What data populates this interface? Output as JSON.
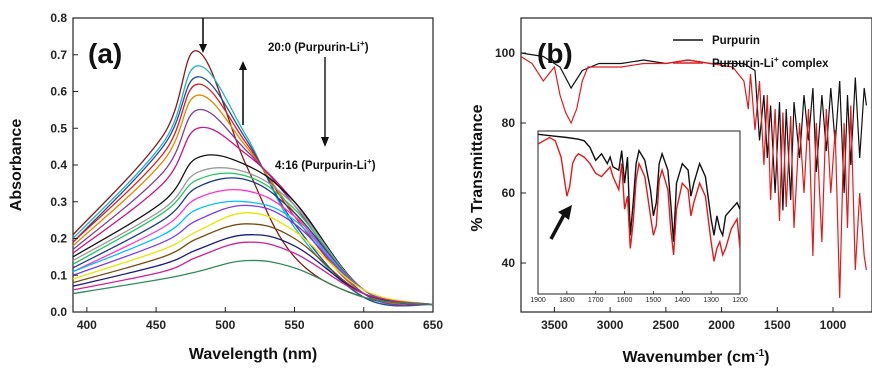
{
  "chart_data": [
    {
      "type": "line",
      "panel_label": "(a)",
      "xlabel": "Wavelength (nm)",
      "ylabel": "Absorbance",
      "xlim": [
        390,
        650
      ],
      "ylim": [
        0.0,
        0.8
      ],
      "xticks": [
        "400",
        "450",
        "500",
        "550",
        "600",
        "650"
      ],
      "yticks": [
        "0.0",
        "0.1",
        "0.2",
        "0.3",
        "0.4",
        "0.5",
        "0.6",
        "0.7",
        "0.8"
      ],
      "annotations": {
        "top": "20:0 (Purpurin-Li",
        "top_sup": "+",
        "top_end": ")",
        "bottom": "4:16 (Purpurin-Li",
        "bottom_sup": "+",
        "bottom_end": ")"
      },
      "grid": false,
      "series": [
        {
          "color": "#8b1a1a",
          "values": [
            0.21,
            0.48,
            0.71,
            0.4,
            0.15,
            0.04,
            0.02
          ]
        },
        {
          "color": "#20b2c8",
          "values": [
            0.2,
            0.46,
            0.67,
            0.48,
            0.23,
            0.04,
            0.02
          ]
        },
        {
          "color": "#1f4e9e",
          "values": [
            0.19,
            0.45,
            0.64,
            0.47,
            0.24,
            0.04,
            0.02
          ]
        },
        {
          "color": "#e31a1c",
          "values": [
            0.19,
            0.43,
            0.62,
            0.46,
            0.26,
            0.05,
            0.02
          ]
        },
        {
          "color": "#e08a00",
          "values": [
            0.18,
            0.41,
            0.59,
            0.45,
            0.27,
            0.05,
            0.02
          ]
        },
        {
          "color": "#7b3fa0",
          "values": [
            0.17,
            0.38,
            0.55,
            0.44,
            0.29,
            0.05,
            0.02
          ]
        },
        {
          "color": "#c71585",
          "values": [
            0.16,
            0.35,
            0.5,
            0.43,
            0.3,
            0.06,
            0.02
          ]
        },
        {
          "color": "#111111",
          "values": [
            0.15,
            0.3,
            0.42,
            0.4,
            0.3,
            0.06,
            0.02
          ]
        },
        {
          "color": "#999999",
          "values": [
            0.14,
            0.28,
            0.38,
            0.38,
            0.29,
            0.06,
            0.02
          ]
        },
        {
          "color": "#22c55e",
          "values": [
            0.13,
            0.27,
            0.36,
            0.37,
            0.28,
            0.06,
            0.02
          ]
        },
        {
          "color": "#1e3a8a",
          "values": [
            0.12,
            0.25,
            0.34,
            0.36,
            0.27,
            0.06,
            0.02
          ]
        },
        {
          "color": "#ff33cc",
          "values": [
            0.11,
            0.23,
            0.31,
            0.33,
            0.26,
            0.06,
            0.02
          ]
        },
        {
          "color": "#00bfff",
          "values": [
            0.11,
            0.21,
            0.28,
            0.3,
            0.25,
            0.06,
            0.02
          ]
        },
        {
          "color": "#7c3aed",
          "values": [
            0.1,
            0.19,
            0.25,
            0.29,
            0.24,
            0.06,
            0.02
          ]
        },
        {
          "color": "#e6e600",
          "values": [
            0.09,
            0.17,
            0.22,
            0.27,
            0.22,
            0.06,
            0.02
          ]
        },
        {
          "color": "#7a4a10",
          "values": [
            0.08,
            0.15,
            0.2,
            0.24,
            0.2,
            0.05,
            0.02
          ]
        },
        {
          "color": "#1a1a80",
          "values": [
            0.07,
            0.13,
            0.17,
            0.21,
            0.18,
            0.05,
            0.02
          ]
        },
        {
          "color": "#d02090",
          "values": [
            0.06,
            0.11,
            0.15,
            0.19,
            0.16,
            0.05,
            0.02
          ]
        },
        {
          "color": "#2e8b57",
          "values": [
            0.05,
            0.09,
            0.11,
            0.14,
            0.12,
            0.04,
            0.02
          ]
        }
      ],
      "x": [
        390,
        455,
        480,
        515,
        550,
        600,
        650
      ]
    },
    {
      "type": "line",
      "panel_label": "(b)",
      "xlabel": "Wavenumber (cm",
      "xlabel_sup": "-1",
      "xlabel_end": ")",
      "ylabel": "% Transmittance",
      "xlim": [
        3800,
        650
      ],
      "ylim": [
        26,
        110
      ],
      "xticks": [
        "3500",
        "3000",
        "2500",
        "2000",
        "1500",
        "1000"
      ],
      "yticks": [
        "40",
        "60",
        "80",
        "100"
      ],
      "grid": false,
      "legend": {
        "position": "top-right",
        "items": [
          {
            "label": "Purpurin",
            "sup": "",
            "label_end": "",
            "color": "#111111"
          },
          {
            "label": "Purpurin-Li",
            "sup": "+",
            "label_end": " complex",
            "color": "#e31a1c"
          }
        ]
      },
      "series": [
        {
          "name": "Purpurin",
          "color": "#111111",
          "x": [
            3800,
            3600,
            3450,
            3350,
            3250,
            3100,
            2900,
            2700,
            2500,
            2300,
            2100,
            1900,
            1800,
            1750,
            1700,
            1660,
            1620,
            1590,
            1560,
            1520,
            1480,
            1450,
            1420,
            1380,
            1350,
            1300,
            1260,
            1220,
            1180,
            1150,
            1100,
            1060,
            1020,
            980,
            940,
            900,
            870,
            840,
            800,
            760,
            720,
            700
          ],
          "y": [
            100,
            99,
            96,
            90,
            95,
            97,
            97,
            98,
            97,
            98,
            97,
            97,
            97,
            96,
            95,
            75,
            88,
            70,
            85,
            60,
            86,
            55,
            84,
            58,
            86,
            70,
            88,
            75,
            90,
            66,
            88,
            72,
            90,
            74,
            92,
            60,
            88,
            68,
            93,
            70,
            90,
            85
          ]
        },
        {
          "name": "Purpurin-Li+ complex",
          "color": "#e31a1c",
          "x": [
            3800,
            3700,
            3600,
            3500,
            3450,
            3400,
            3350,
            3300,
            3250,
            3200,
            3100,
            2900,
            2700,
            2500,
            2300,
            2100,
            1900,
            1800,
            1760,
            1740,
            1700,
            1660,
            1620,
            1590,
            1560,
            1520,
            1480,
            1450,
            1420,
            1380,
            1350,
            1300,
            1260,
            1220,
            1180,
            1150,
            1100,
            1060,
            1020,
            980,
            940,
            900,
            870,
            840,
            800,
            760,
            720,
            700
          ],
          "y": [
            99,
            97,
            92,
            96,
            88,
            83,
            80,
            84,
            92,
            96,
            96,
            96,
            97,
            97,
            98,
            97,
            96,
            92,
            84,
            94,
            78,
            92,
            68,
            88,
            58,
            84,
            52,
            83,
            56,
            82,
            50,
            80,
            60,
            84,
            42,
            80,
            46,
            84,
            60,
            78,
            30,
            80,
            50,
            85,
            38,
            60,
            42,
            38
          ]
        }
      ],
      "inset": {
        "xlim": [
          1900,
          1200
        ],
        "ylim": [
          32,
          82
        ],
        "xticks": [
          "1900",
          "1800",
          "1700",
          "1600",
          "1500",
          "1400",
          "1300",
          "1200"
        ],
        "series": [
          {
            "name": "Purpurin",
            "color": "#111111",
            "x": [
              1900,
              1850,
              1800,
              1760,
              1740,
              1720,
              1700,
              1680,
              1660,
              1650,
              1640,
              1620,
              1610,
              1600,
              1590,
              1580,
              1570,
              1560,
              1550,
              1530,
              1510,
              1500,
              1490,
              1480,
              1470,
              1450,
              1440,
              1430,
              1420,
              1400,
              1380,
              1370,
              1360,
              1340,
              1320,
              1300,
              1290,
              1280,
              1270,
              1260,
              1250,
              1230,
              1210,
              1200
            ],
            "y": [
              81,
              80.5,
              80,
              79.5,
              79,
              77,
              73,
              75,
              72,
              74,
              71,
              70,
              76,
              66,
              74,
              50,
              60,
              72,
              76,
              73,
              64,
              56,
              60,
              72,
              75,
              70,
              60,
              48,
              66,
              72,
              70,
              62,
              66,
              72,
              68,
              55,
              50,
              56,
              52,
              50,
              56,
              58,
              60,
              58
            ]
          },
          {
            "name": "Purpurin-Li+ complex",
            "color": "#e31a1c",
            "x": [
              1900,
              1860,
              1840,
              1820,
              1810,
              1800,
              1790,
              1780,
              1770,
              1760,
              1740,
              1720,
              1700,
              1680,
              1660,
              1650,
              1640,
              1620,
              1610,
              1600,
              1590,
              1580,
              1570,
              1560,
              1550,
              1530,
              1510,
              1500,
              1490,
              1480,
              1470,
              1450,
              1440,
              1430,
              1420,
              1400,
              1380,
              1370,
              1360,
              1340,
              1320,
              1300,
              1290,
              1280,
              1270,
              1260,
              1250,
              1230,
              1210,
              1200
            ],
            "y": [
              78,
              80,
              79,
              74,
              68,
              62,
              65,
              72,
              74,
              75,
              74,
              72,
              69,
              68,
              70,
              71,
              68,
              64,
              72,
              58,
              62,
              46,
              54,
              67,
              72,
              68,
              56,
              50,
              53,
              67,
              70,
              64,
              52,
              44,
              58,
              66,
              64,
              56,
              60,
              66,
              62,
              48,
              42,
              46,
              48,
              44,
              46,
              52,
              55,
              46
            ]
          }
        ]
      }
    }
  ]
}
